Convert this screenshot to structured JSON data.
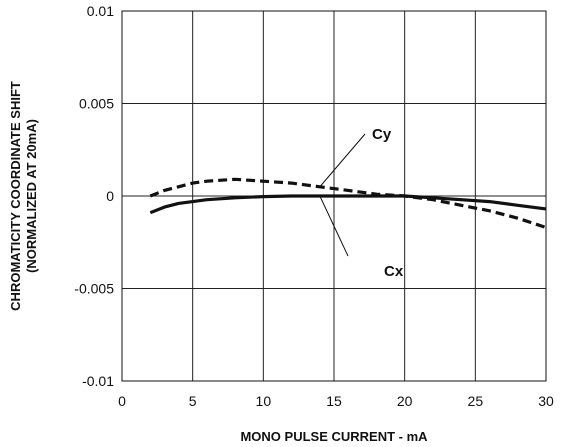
{
  "chart_data": {
    "type": "line",
    "xlabel": "MONO PULSE CURRENT - mA",
    "ylabel_line1": "CHROMATICITY COORDINATE SHIFT",
    "ylabel_line2": "(NORMALIZED AT 20mA)",
    "xlim": [
      0,
      30
    ],
    "ylim": [
      -0.01,
      0.01
    ],
    "x_ticks": [
      0,
      5,
      10,
      15,
      20,
      25,
      30
    ],
    "x_tick_labels": [
      "0",
      "5",
      "10",
      "15",
      "20",
      "25",
      "30"
    ],
    "y_ticks": [
      -0.01,
      -0.005,
      0,
      0.005,
      0.01
    ],
    "y_tick_labels": [
      "-0.01",
      "-0.005",
      "0",
      "0.005",
      "0.01"
    ],
    "grid": true,
    "series": [
      {
        "name": "Cx",
        "style": "solid",
        "color": "#111111",
        "x": [
          2,
          3,
          4,
          5,
          6,
          8,
          10,
          12,
          14,
          16,
          18,
          20,
          22,
          24,
          26,
          28,
          30
        ],
        "y": [
          -0.0009,
          -0.0006,
          -0.0004,
          -0.0003,
          -0.0002,
          -0.0001,
          -3e-05,
          0.0,
          0.0,
          0.0,
          0.0,
          0.0,
          -0.0001,
          -0.0002,
          -0.0003,
          -0.0005,
          -0.0007
        ]
      },
      {
        "name": "Cy",
        "style": "dashed",
        "color": "#111111",
        "x": [
          2,
          3,
          4,
          5,
          6,
          8,
          10,
          12,
          14,
          16,
          18,
          20,
          22,
          24,
          26,
          28,
          30
        ],
        "y": [
          0.0,
          0.0003,
          0.0005,
          0.0007,
          0.0008,
          0.0009,
          0.0008,
          0.0007,
          0.0005,
          0.0003,
          0.0001,
          0.0,
          -0.0002,
          -0.0005,
          -0.0008,
          -0.0012,
          -0.0017
        ]
      }
    ],
    "annotations": [
      {
        "text": "Cy",
        "points_to_series": "Cy",
        "points_to_x": 14
      },
      {
        "text": "Cx",
        "points_to_series": "Cx",
        "points_to_x": 14
      }
    ]
  }
}
